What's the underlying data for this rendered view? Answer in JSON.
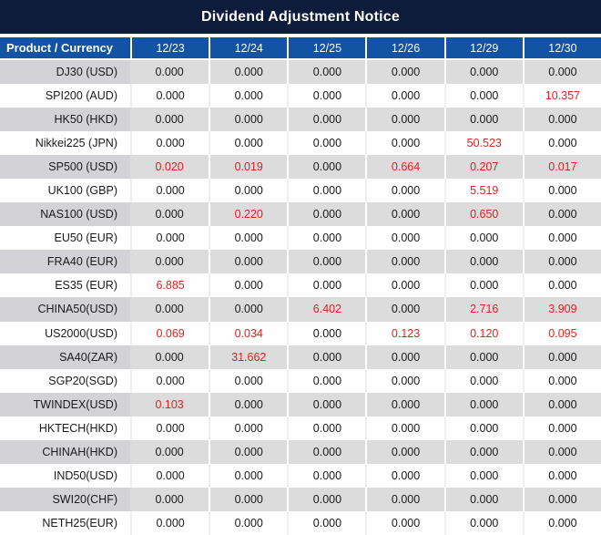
{
  "title": "Dividend Adjustment Notice",
  "table": {
    "corner_header": "Product / Currency",
    "date_headers": [
      "12/23",
      "12/24",
      "12/25",
      "12/26",
      "12/29",
      "12/30"
    ],
    "rows": [
      {
        "product": "DJ30 (USD)",
        "values": [
          "0.000",
          "0.000",
          "0.000",
          "0.000",
          "0.000",
          "0.000"
        ],
        "red_cols": []
      },
      {
        "product": "SPI200 (AUD)",
        "values": [
          "0.000",
          "0.000",
          "0.000",
          "0.000",
          "0.000",
          "10.357"
        ],
        "red_cols": [
          5
        ]
      },
      {
        "product": "HK50 (HKD)",
        "values": [
          "0.000",
          "0.000",
          "0.000",
          "0.000",
          "0.000",
          "0.000"
        ],
        "red_cols": []
      },
      {
        "product": "Nikkei225 (JPN)",
        "values": [
          "0.000",
          "0.000",
          "0.000",
          "0.000",
          "50.523",
          "0.000"
        ],
        "red_cols": [
          4
        ]
      },
      {
        "product": "SP500 (USD)",
        "values": [
          "0.020",
          "0.019",
          "0.000",
          "0.664",
          "0.207",
          "0.017"
        ],
        "red_cols": [
          0,
          1,
          3,
          4,
          5
        ]
      },
      {
        "product": "UK100 (GBP)",
        "values": [
          "0.000",
          "0.000",
          "0.000",
          "0.000",
          "5.519",
          "0.000"
        ],
        "red_cols": [
          4
        ]
      },
      {
        "product": "NAS100 (USD)",
        "values": [
          "0.000",
          "0.220",
          "0.000",
          "0.000",
          "0.650",
          "0.000"
        ],
        "red_cols": [
          1,
          4
        ]
      },
      {
        "product": "EU50 (EUR)",
        "values": [
          "0.000",
          "0.000",
          "0.000",
          "0.000",
          "0.000",
          "0.000"
        ],
        "red_cols": []
      },
      {
        "product": "FRA40 (EUR)",
        "values": [
          "0.000",
          "0.000",
          "0.000",
          "0.000",
          "0.000",
          "0.000"
        ],
        "red_cols": []
      },
      {
        "product": "ES35 (EUR)",
        "values": [
          "6.885",
          "0.000",
          "0.000",
          "0.000",
          "0.000",
          "0.000"
        ],
        "red_cols": [
          0
        ]
      },
      {
        "product": "CHINA50(USD)",
        "values": [
          "0.000",
          "0.000",
          "6.402",
          "0.000",
          "2.716",
          "3.909"
        ],
        "red_cols": [
          2,
          4,
          5
        ]
      },
      {
        "product": "US2000(USD)",
        "values": [
          "0.069",
          "0.034",
          "0.000",
          "0.123",
          "0.120",
          "0.095"
        ],
        "red_cols": [
          0,
          1,
          3,
          4,
          5
        ]
      },
      {
        "product": "SA40(ZAR)",
        "values": [
          "0.000",
          "31.662",
          "0.000",
          "0.000",
          "0.000",
          "0.000"
        ],
        "red_cols": [
          1
        ]
      },
      {
        "product": "SGP20(SGD)",
        "values": [
          "0.000",
          "0.000",
          "0.000",
          "0.000",
          "0.000",
          "0.000"
        ],
        "red_cols": []
      },
      {
        "product": "TWINDEX(USD)",
        "values": [
          "0.103",
          "0.000",
          "0.000",
          "0.000",
          "0.000",
          "0.000"
        ],
        "red_cols": [
          0
        ]
      },
      {
        "product": "HKTECH(HKD)",
        "values": [
          "0.000",
          "0.000",
          "0.000",
          "0.000",
          "0.000",
          "0.000"
        ],
        "red_cols": []
      },
      {
        "product": "CHINAH(HKD)",
        "values": [
          "0.000",
          "0.000",
          "0.000",
          "0.000",
          "0.000",
          "0.000"
        ],
        "red_cols": []
      },
      {
        "product": "IND50(USD)",
        "values": [
          "0.000",
          "0.000",
          "0.000",
          "0.000",
          "0.000",
          "0.000"
        ],
        "red_cols": []
      },
      {
        "product": "SWI20(CHF)",
        "values": [
          "0.000",
          "0.000",
          "0.000",
          "0.000",
          "0.000",
          "0.000"
        ],
        "red_cols": []
      },
      {
        "product": "NETH25(EUR)",
        "values": [
          "0.000",
          "0.000",
          "0.000",
          "0.000",
          "0.000",
          "0.000"
        ],
        "red_cols": []
      }
    ]
  },
  "colors": {
    "title_bg": "#0d1c3a",
    "header_bg": "#1353a3",
    "row_gray_bg": "#dcdcdc",
    "product_col_gray_bg": "#d3d3d7",
    "row_white_bg": "#ffffff",
    "highlight_red": "#e3211c",
    "text_dark": "#1a1a1a",
    "header_text": "#ffffff"
  }
}
